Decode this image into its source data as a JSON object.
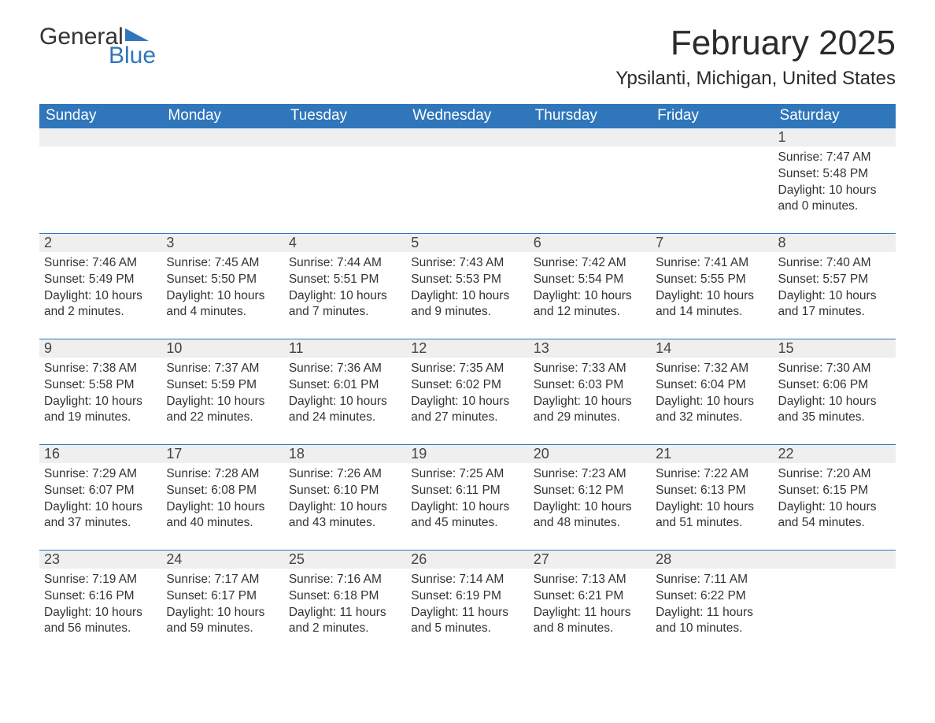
{
  "logo": {
    "text1": "General",
    "text2": "Blue",
    "accent_color": "#2f76bb"
  },
  "title": "February 2025",
  "location": "Ypsilanti, Michigan, United States",
  "colors": {
    "header_bg": "#2f76bb",
    "header_text": "#ffffff",
    "daynum_bg": "#efefef",
    "row_border": "#2f76bb",
    "text": "#333333",
    "page_bg": "#ffffff"
  },
  "type": "calendar-table",
  "day_headers": [
    "Sunday",
    "Monday",
    "Tuesday",
    "Wednesday",
    "Thursday",
    "Friday",
    "Saturday"
  ],
  "weeks": [
    [
      null,
      null,
      null,
      null,
      null,
      null,
      {
        "n": "1",
        "sunrise": "Sunrise: 7:47 AM",
        "sunset": "Sunset: 5:48 PM",
        "daylight": "Daylight: 10 hours and 0 minutes."
      }
    ],
    [
      {
        "n": "2",
        "sunrise": "Sunrise: 7:46 AM",
        "sunset": "Sunset: 5:49 PM",
        "daylight": "Daylight: 10 hours and 2 minutes."
      },
      {
        "n": "3",
        "sunrise": "Sunrise: 7:45 AM",
        "sunset": "Sunset: 5:50 PM",
        "daylight": "Daylight: 10 hours and 4 minutes."
      },
      {
        "n": "4",
        "sunrise": "Sunrise: 7:44 AM",
        "sunset": "Sunset: 5:51 PM",
        "daylight": "Daylight: 10 hours and 7 minutes."
      },
      {
        "n": "5",
        "sunrise": "Sunrise: 7:43 AM",
        "sunset": "Sunset: 5:53 PM",
        "daylight": "Daylight: 10 hours and 9 minutes."
      },
      {
        "n": "6",
        "sunrise": "Sunrise: 7:42 AM",
        "sunset": "Sunset: 5:54 PM",
        "daylight": "Daylight: 10 hours and 12 minutes."
      },
      {
        "n": "7",
        "sunrise": "Sunrise: 7:41 AM",
        "sunset": "Sunset: 5:55 PM",
        "daylight": "Daylight: 10 hours and 14 minutes."
      },
      {
        "n": "8",
        "sunrise": "Sunrise: 7:40 AM",
        "sunset": "Sunset: 5:57 PM",
        "daylight": "Daylight: 10 hours and 17 minutes."
      }
    ],
    [
      {
        "n": "9",
        "sunrise": "Sunrise: 7:38 AM",
        "sunset": "Sunset: 5:58 PM",
        "daylight": "Daylight: 10 hours and 19 minutes."
      },
      {
        "n": "10",
        "sunrise": "Sunrise: 7:37 AM",
        "sunset": "Sunset: 5:59 PM",
        "daylight": "Daylight: 10 hours and 22 minutes."
      },
      {
        "n": "11",
        "sunrise": "Sunrise: 7:36 AM",
        "sunset": "Sunset: 6:01 PM",
        "daylight": "Daylight: 10 hours and 24 minutes."
      },
      {
        "n": "12",
        "sunrise": "Sunrise: 7:35 AM",
        "sunset": "Sunset: 6:02 PM",
        "daylight": "Daylight: 10 hours and 27 minutes."
      },
      {
        "n": "13",
        "sunrise": "Sunrise: 7:33 AM",
        "sunset": "Sunset: 6:03 PM",
        "daylight": "Daylight: 10 hours and 29 minutes."
      },
      {
        "n": "14",
        "sunrise": "Sunrise: 7:32 AM",
        "sunset": "Sunset: 6:04 PM",
        "daylight": "Daylight: 10 hours and 32 minutes."
      },
      {
        "n": "15",
        "sunrise": "Sunrise: 7:30 AM",
        "sunset": "Sunset: 6:06 PM",
        "daylight": "Daylight: 10 hours and 35 minutes."
      }
    ],
    [
      {
        "n": "16",
        "sunrise": "Sunrise: 7:29 AM",
        "sunset": "Sunset: 6:07 PM",
        "daylight": "Daylight: 10 hours and 37 minutes."
      },
      {
        "n": "17",
        "sunrise": "Sunrise: 7:28 AM",
        "sunset": "Sunset: 6:08 PM",
        "daylight": "Daylight: 10 hours and 40 minutes."
      },
      {
        "n": "18",
        "sunrise": "Sunrise: 7:26 AM",
        "sunset": "Sunset: 6:10 PM",
        "daylight": "Daylight: 10 hours and 43 minutes."
      },
      {
        "n": "19",
        "sunrise": "Sunrise: 7:25 AM",
        "sunset": "Sunset: 6:11 PM",
        "daylight": "Daylight: 10 hours and 45 minutes."
      },
      {
        "n": "20",
        "sunrise": "Sunrise: 7:23 AM",
        "sunset": "Sunset: 6:12 PM",
        "daylight": "Daylight: 10 hours and 48 minutes."
      },
      {
        "n": "21",
        "sunrise": "Sunrise: 7:22 AM",
        "sunset": "Sunset: 6:13 PM",
        "daylight": "Daylight: 10 hours and 51 minutes."
      },
      {
        "n": "22",
        "sunrise": "Sunrise: 7:20 AM",
        "sunset": "Sunset: 6:15 PM",
        "daylight": "Daylight: 10 hours and 54 minutes."
      }
    ],
    [
      {
        "n": "23",
        "sunrise": "Sunrise: 7:19 AM",
        "sunset": "Sunset: 6:16 PM",
        "daylight": "Daylight: 10 hours and 56 minutes."
      },
      {
        "n": "24",
        "sunrise": "Sunrise: 7:17 AM",
        "sunset": "Sunset: 6:17 PM",
        "daylight": "Daylight: 10 hours and 59 minutes."
      },
      {
        "n": "25",
        "sunrise": "Sunrise: 7:16 AM",
        "sunset": "Sunset: 6:18 PM",
        "daylight": "Daylight: 11 hours and 2 minutes."
      },
      {
        "n": "26",
        "sunrise": "Sunrise: 7:14 AM",
        "sunset": "Sunset: 6:19 PM",
        "daylight": "Daylight: 11 hours and 5 minutes."
      },
      {
        "n": "27",
        "sunrise": "Sunrise: 7:13 AM",
        "sunset": "Sunset: 6:21 PM",
        "daylight": "Daylight: 11 hours and 8 minutes."
      },
      {
        "n": "28",
        "sunrise": "Sunrise: 7:11 AM",
        "sunset": "Sunset: 6:22 PM",
        "daylight": "Daylight: 11 hours and 10 minutes."
      },
      null
    ]
  ]
}
